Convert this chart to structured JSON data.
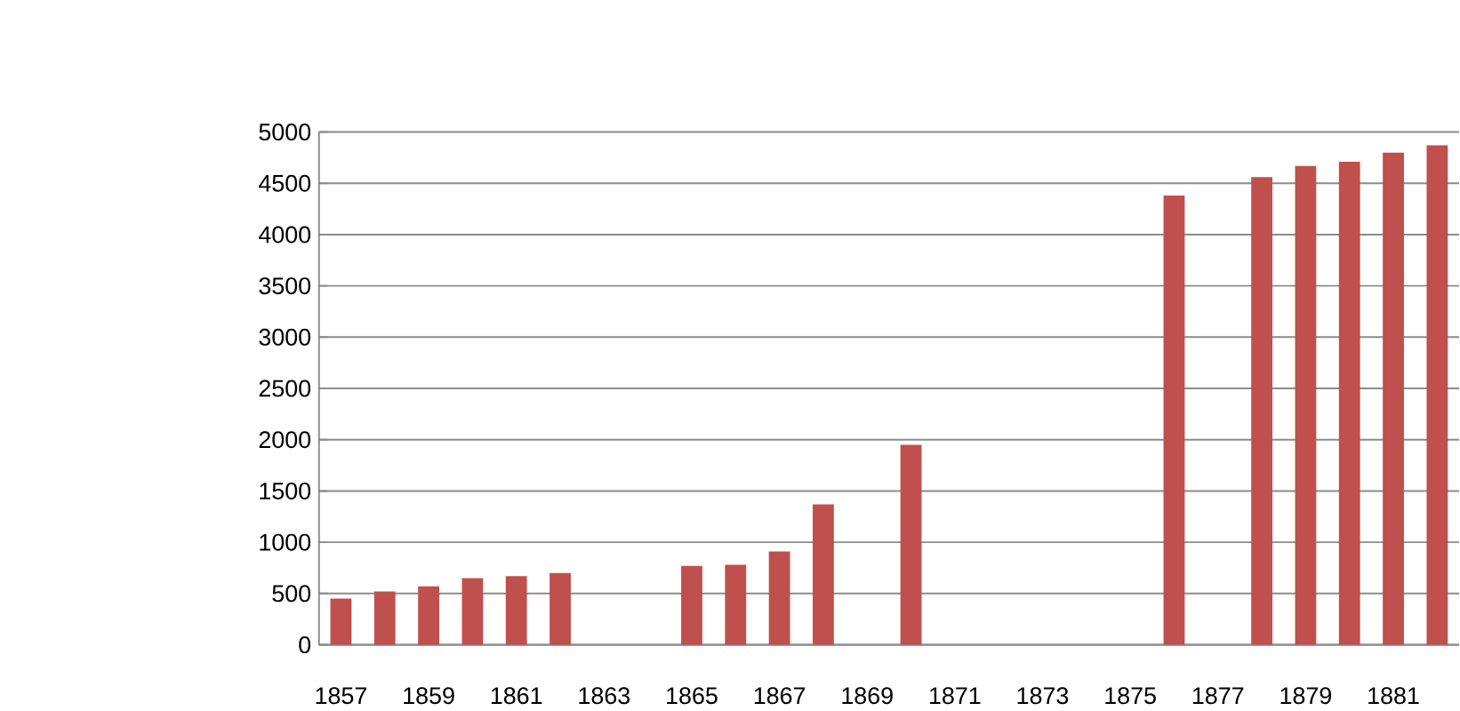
{
  "chart_data": {
    "type": "bar",
    "categories": [
      "1857",
      null,
      "1859",
      null,
      "1861",
      null,
      "1863",
      null,
      "1865",
      null,
      "1867",
      null,
      "1869",
      null,
      "1871",
      null,
      "1873",
      null,
      "1875",
      null,
      "1877",
      null,
      "1879",
      null,
      "1881",
      null
    ],
    "values": [
      450,
      520,
      570,
      650,
      670,
      700,
      null,
      null,
      770,
      780,
      910,
      1370,
      null,
      1950,
      null,
      null,
      null,
      null,
      null,
      4380,
      null,
      4560,
      4670,
      4710,
      4800,
      4870
    ],
    "color": "#c0504d",
    "ylim": [
      0,
      5000
    ],
    "yticks": [
      0,
      500,
      1000,
      1500,
      2000,
      2500,
      3000,
      3500,
      4000,
      4500,
      5000
    ],
    "grid": "y"
  }
}
